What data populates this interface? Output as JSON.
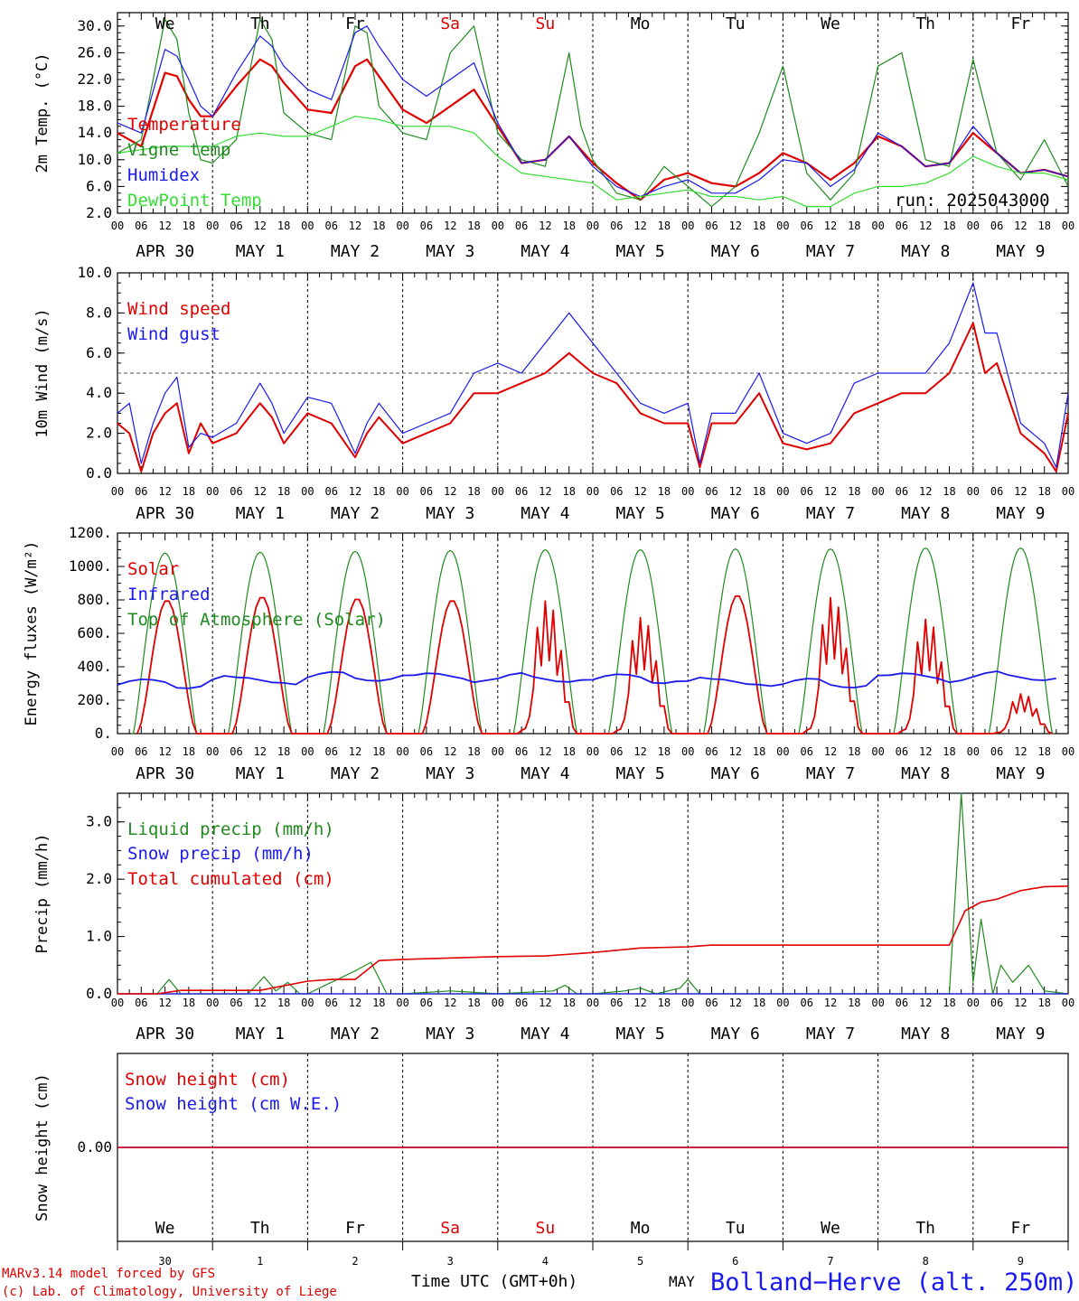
{
  "run_label": "run: 2025043000",
  "days": [
    {
      "dow": "We",
      "dom": "30",
      "date": "APR 30",
      "weekend": false
    },
    {
      "dow": "Th",
      "dom": "1",
      "date": "MAY  1",
      "weekend": false
    },
    {
      "dow": "Fr",
      "dom": "2",
      "date": "MAY  2",
      "weekend": false
    },
    {
      "dow": "Sa",
      "dom": "3",
      "date": "MAY  3",
      "weekend": true
    },
    {
      "dow": "Su",
      "dom": "4",
      "date": "MAY  4",
      "weekend": true
    },
    {
      "dow": "Mo",
      "dom": "5",
      "date": "MAY  5",
      "weekend": false
    },
    {
      "dow": "Tu",
      "dom": "6",
      "date": "MAY  6",
      "weekend": false
    },
    {
      "dow": "We",
      "dom": "7",
      "date": "MAY  7",
      "weekend": false
    },
    {
      "dow": "Th",
      "dom": "8",
      "date": "MAY  8",
      "weekend": false
    },
    {
      "dow": "Fr",
      "dom": "9",
      "date": "MAY  9",
      "weekend": false
    }
  ],
  "hour_labels": [
    "00",
    "06",
    "12",
    "18"
  ],
  "footer": {
    "model": "MARv3.14 model forced by GFS",
    "credit": "(c) Lab. of Climatology, University of Liege",
    "xlabel": "Time UTC (GMT+0h)",
    "month": "MAY",
    "station": "Bolland−Herve (alt. 250m)"
  },
  "colors": {
    "red": "#e00000",
    "green": "#1f8a1f",
    "blue": "#1a1aee",
    "lightgreen": "#33dd33",
    "black": "#000000"
  },
  "chart_data": [
    {
      "type": "line",
      "ylabel": "2m Temp. (°C)",
      "ylim": [
        2,
        32
      ],
      "yticks": [
        2,
        6,
        10,
        14,
        18,
        22,
        26,
        30
      ],
      "ytick_labels": [
        "2.0",
        "6.0",
        "10.0",
        "14.0",
        "18.0",
        "22.0",
        "26.0",
        "30.0"
      ],
      "x_unit": "hours since 2025-04-30 00 UTC",
      "series": [
        {
          "name": "Temperature",
          "color": "red",
          "x": [
            0,
            6,
            12,
            15,
            18,
            21,
            24,
            30,
            36,
            39,
            42,
            48,
            54,
            60,
            63,
            66,
            72,
            78,
            84,
            90,
            96,
            102,
            108,
            114,
            120,
            126,
            132,
            138,
            144,
            150,
            156,
            162,
            168,
            174,
            180,
            186,
            192,
            198,
            204,
            210,
            216,
            222,
            228,
            234,
            240
          ],
          "y": [
            14,
            12,
            23,
            22.5,
            19,
            16.5,
            16.5,
            21,
            25,
            24,
            21.5,
            17.5,
            17,
            24,
            25,
            22.5,
            17.5,
            15.5,
            18,
            20.5,
            15,
            9.5,
            10,
            13.5,
            9.5,
            6.5,
            4,
            7,
            8,
            6.5,
            6,
            8,
            11,
            9.5,
            7,
            9.5,
            13.5,
            12,
            9,
            9.5,
            14,
            11,
            8,
            8.5,
            7.5
          ]
        },
        {
          "name": "Vigne temp",
          "color": "green",
          "x": [
            0,
            6,
            12,
            15,
            18,
            21,
            24,
            30,
            36,
            39,
            42,
            48,
            54,
            60,
            63,
            66,
            72,
            78,
            84,
            90,
            96,
            102,
            108,
            114,
            117,
            120,
            126,
            132,
            138,
            144,
            150,
            156,
            162,
            168,
            174,
            180,
            186,
            192,
            198,
            204,
            210,
            216,
            222,
            228,
            234,
            240
          ],
          "y": [
            11,
            13,
            31,
            28,
            17,
            10,
            9.5,
            13,
            31,
            28,
            17,
            14,
            13,
            30,
            29,
            18,
            14,
            13,
            26,
            30,
            14,
            10,
            9,
            26,
            15,
            10,
            5,
            4,
            9,
            6,
            3,
            6,
            14,
            24,
            8,
            4,
            8,
            24,
            26,
            10,
            9,
            25,
            11,
            7,
            13,
            6
          ]
        },
        {
          "name": "Humidex",
          "color": "blue",
          "x": [
            0,
            6,
            12,
            15,
            18,
            21,
            24,
            30,
            36,
            39,
            42,
            48,
            54,
            60,
            63,
            66,
            72,
            78,
            84,
            90,
            96,
            102,
            108,
            114,
            120,
            126,
            132,
            138,
            144,
            150,
            156,
            162,
            168,
            174,
            180,
            186,
            192,
            198,
            204,
            210,
            216,
            222,
            228,
            234,
            240
          ],
          "y": [
            15.5,
            14,
            26.5,
            25.5,
            22,
            18,
            16.5,
            23,
            28.5,
            27,
            24,
            20.5,
            19,
            29,
            30,
            27,
            22,
            19.5,
            22,
            24.5,
            15.5,
            9.5,
            10,
            13.5,
            9,
            6,
            4.5,
            6,
            7,
            5,
            5,
            7,
            10,
            9.5,
            6,
            8.5,
            14,
            12,
            9,
            9.5,
            15,
            11,
            8,
            8.5,
            7.5
          ]
        },
        {
          "name": "DewPoint Temp",
          "color": "lightgreen",
          "x": [
            0,
            6,
            12,
            18,
            24,
            30,
            36,
            42,
            48,
            54,
            60,
            66,
            72,
            78,
            84,
            90,
            96,
            102,
            108,
            114,
            120,
            126,
            132,
            138,
            144,
            150,
            156,
            162,
            168,
            174,
            180,
            186,
            192,
            198,
            204,
            210,
            216,
            222,
            228,
            234,
            240
          ],
          "y": [
            11,
            11.5,
            12,
            12,
            12,
            13.5,
            14,
            13.5,
            13.5,
            15,
            16.5,
            16,
            15,
            15,
            15,
            14,
            10.5,
            8,
            7.5,
            7,
            6.5,
            4,
            4.5,
            5,
            5.5,
            4.5,
            4.5,
            4,
            4.5,
            3,
            3,
            5,
            6,
            6,
            6.5,
            8,
            10.5,
            9,
            8,
            8,
            7
          ]
        }
      ]
    },
    {
      "type": "line",
      "ylabel": "10m Wind (m/s)",
      "ylim": [
        0,
        10
      ],
      "yticks": [
        0,
        2,
        4,
        6,
        8,
        10
      ],
      "ytick_labels": [
        "0.0",
        "2.0",
        "4.0",
        "6.0",
        "8.0",
        "10.0"
      ],
      "reference_line": 5,
      "x_unit": "hours since 2025-04-30 00 UTC",
      "series": [
        {
          "name": "Wind speed",
          "color": "red",
          "x": [
            0,
            3,
            6,
            9,
            12,
            15,
            18,
            21,
            24,
            30,
            36,
            39,
            42,
            48,
            54,
            60,
            63,
            66,
            72,
            78,
            84,
            90,
            96,
            102,
            108,
            114,
            120,
            126,
            132,
            138,
            144,
            147,
            150,
            156,
            162,
            168,
            174,
            180,
            186,
            192,
            198,
            204,
            210,
            216,
            219,
            222,
            228,
            234,
            237,
            240
          ],
          "y": [
            2.5,
            2,
            0.1,
            2,
            3,
            3.5,
            1,
            2.5,
            1.5,
            2,
            3.5,
            2.8,
            1.5,
            3,
            2.5,
            0.8,
            2,
            2.8,
            1.5,
            2,
            2.5,
            4,
            4,
            4.5,
            5,
            6,
            5,
            4.5,
            3,
            2.5,
            2.5,
            0.3,
            2.5,
            2.5,
            4,
            1.5,
            1.2,
            1.5,
            3,
            3.5,
            4,
            4,
            5,
            7.5,
            5,
            5.5,
            2,
            1,
            0.1,
            3
          ]
        },
        {
          "name": "Wind gust",
          "color": "blue",
          "x": [
            0,
            3,
            6,
            9,
            12,
            15,
            18,
            21,
            24,
            30,
            36,
            39,
            42,
            48,
            54,
            60,
            63,
            66,
            72,
            78,
            84,
            90,
            96,
            102,
            108,
            114,
            120,
            126,
            132,
            138,
            144,
            147,
            150,
            156,
            162,
            168,
            174,
            180,
            186,
            192,
            198,
            204,
            210,
            216,
            219,
            222,
            228,
            234,
            237,
            240
          ],
          "y": [
            3,
            3.5,
            0.5,
            2.5,
            4,
            4.8,
            1.3,
            2,
            1.8,
            2.5,
            4.5,
            3.5,
            2,
            3.8,
            3.5,
            1,
            2.5,
            3.5,
            2,
            2.5,
            3,
            5,
            5.5,
            5,
            6.5,
            8,
            6.5,
            5,
            3.5,
            3,
            3.5,
            0.5,
            3,
            3,
            5,
            2,
            1.5,
            2,
            4.5,
            5,
            5,
            5,
            6.5,
            9.5,
            7,
            7,
            2.5,
            1.5,
            0.3,
            4
          ]
        }
      ]
    },
    {
      "type": "line",
      "ylabel": "Energy fluxes (W/m²)",
      "ylim": [
        0,
        1200
      ],
      "yticks": [
        0,
        200,
        400,
        600,
        800,
        1000,
        1200
      ],
      "ytick_labels": [
        "0.",
        "200.",
        "400.",
        "600.",
        "800.",
        "1000.",
        "1200."
      ],
      "x_unit": "hours since 2025-04-30 00 UTC",
      "series": [
        {
          "name": "Solar",
          "color": "red",
          "daily_peak": [
            800,
            820,
            810,
            800,
            800,
            700,
            830,
            820,
            690,
            240
          ]
        },
        {
          "name": "Infrared",
          "color": "blue",
          "daily_mean": [
            300,
            320,
            340,
            340,
            330,
            330,
            310,
            300,
            340,
            340
          ]
        },
        {
          "name": "Top of Atmosphere (Solar)",
          "color": "green",
          "daily_peak": [
            1080,
            1085,
            1090,
            1095,
            1100,
            1100,
            1105,
            1105,
            1110,
            1110
          ]
        }
      ]
    },
    {
      "type": "line",
      "ylabel": "Precip (mm/h)",
      "ylim": [
        0,
        3.5
      ],
      "yticks": [
        0,
        1,
        2,
        3
      ],
      "ytick_labels": [
        "0.0",
        "1.0",
        "2.0",
        "3.0"
      ],
      "x_unit": "hours since 2025-04-30 00 UTC",
      "series": [
        {
          "name": "Liquid precip (mm/h)",
          "color": "green",
          "x": [
            0,
            10,
            13,
            16,
            24,
            33,
            37,
            40,
            43,
            46,
            48,
            60,
            64,
            68,
            72,
            84,
            96,
            110,
            113,
            116,
            120,
            128,
            132,
            136,
            142,
            144,
            147,
            150,
            168,
            192,
            210,
            213,
            216,
            218,
            221,
            223,
            226,
            230,
            234,
            240
          ],
          "y": [
            0,
            0,
            0.25,
            0,
            0,
            0,
            0.3,
            0.05,
            0.2,
            0,
            0,
            0.4,
            0.55,
            0,
            0,
            0.05,
            0,
            0.05,
            0.15,
            0,
            0,
            0.05,
            0.1,
            0,
            0.1,
            0.25,
            0,
            0,
            0,
            0,
            0,
            3.5,
            0.2,
            1.3,
            0,
            0.5,
            0.2,
            0.5,
            0.05,
            0
          ]
        },
        {
          "name": "Snow precip (mm/h)",
          "color": "blue",
          "x": [
            0,
            240
          ],
          "y": [
            0,
            0
          ]
        },
        {
          "name": "Total cumulated (cm)",
          "color": "red",
          "x": [
            0,
            10,
            16,
            36,
            48,
            54,
            60,
            66,
            72,
            96,
            108,
            120,
            126,
            132,
            144,
            150,
            168,
            192,
            210,
            214,
            218,
            222,
            228,
            234,
            240
          ],
          "y": [
            0,
            0,
            0.06,
            0.06,
            0.22,
            0.25,
            0.25,
            0.58,
            0.6,
            0.65,
            0.66,
            0.72,
            0.76,
            0.8,
            0.82,
            0.85,
            0.85,
            0.85,
            0.85,
            1.45,
            1.6,
            1.65,
            1.8,
            1.87,
            1.88
          ]
        }
      ]
    },
    {
      "type": "line",
      "ylabel": "Snow height (cm)",
      "ytick_labels": [
        "0.00"
      ],
      "x_unit": "hours since 2025-04-30 00 UTC",
      "series": [
        {
          "name": "Snow height (cm)",
          "color": "red",
          "x": [
            0,
            240
          ],
          "y": [
            0,
            0
          ]
        },
        {
          "name": "Snow height (cm W.E.)",
          "color": "blue",
          "x": [
            0,
            240
          ],
          "y": [
            0,
            0
          ]
        }
      ]
    }
  ]
}
